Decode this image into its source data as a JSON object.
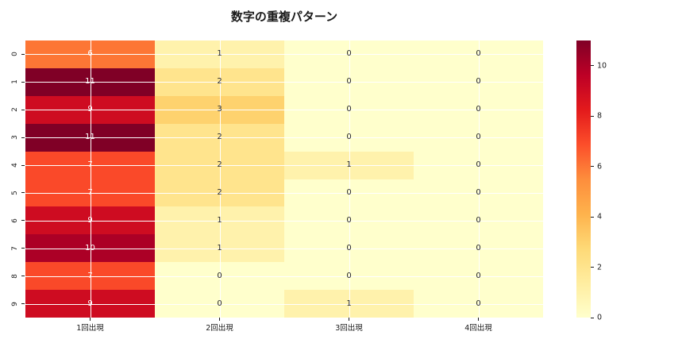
{
  "title": "数字の重複パターン",
  "chart_data": {
    "type": "heatmap",
    "title": "数字の重複パターン",
    "x_labels": [
      "1回出現",
      "2回出現",
      "3回出現",
      "4回出現"
    ],
    "y_labels": [
      "0",
      "1",
      "2",
      "3",
      "4",
      "5",
      "6",
      "7",
      "8",
      "9"
    ],
    "values": [
      [
        6,
        1,
        0,
        0
      ],
      [
        11,
        2,
        0,
        0
      ],
      [
        9,
        3,
        0,
        0
      ],
      [
        11,
        2,
        0,
        0
      ],
      [
        7,
        2,
        1,
        0
      ],
      [
        7,
        2,
        0,
        0
      ],
      [
        9,
        1,
        0,
        0
      ],
      [
        10,
        1,
        0,
        0
      ],
      [
        7,
        0,
        0,
        0
      ],
      [
        9,
        0,
        1,
        0
      ]
    ],
    "vmin": 0,
    "vmax": 11,
    "colormap": {
      "name": "YlOrRd",
      "stops": [
        {
          "t": 0.0,
          "c": [
            255,
            255,
            204
          ]
        },
        {
          "t": 0.125,
          "c": [
            255,
            237,
            160
          ]
        },
        {
          "t": 0.25,
          "c": [
            254,
            217,
            118
          ]
        },
        {
          "t": 0.375,
          "c": [
            254,
            178,
            76
          ]
        },
        {
          "t": 0.5,
          "c": [
            253,
            141,
            60
          ]
        },
        {
          "t": 0.625,
          "c": [
            252,
            78,
            42
          ]
        },
        {
          "t": 0.75,
          "c": [
            227,
            26,
            28
          ]
        },
        {
          "t": 0.875,
          "c": [
            189,
            0,
            38
          ]
        },
        {
          "t": 1.0,
          "c": [
            128,
            0,
            38
          ]
        }
      ]
    },
    "colorbar_ticks": [
      0,
      2,
      4,
      6,
      8,
      10
    ],
    "annotation_colors": {
      "light": "#ffffff",
      "dark": "#262626"
    },
    "gridline_color": "#ffffff",
    "legend_position": "right",
    "grid": true
  }
}
